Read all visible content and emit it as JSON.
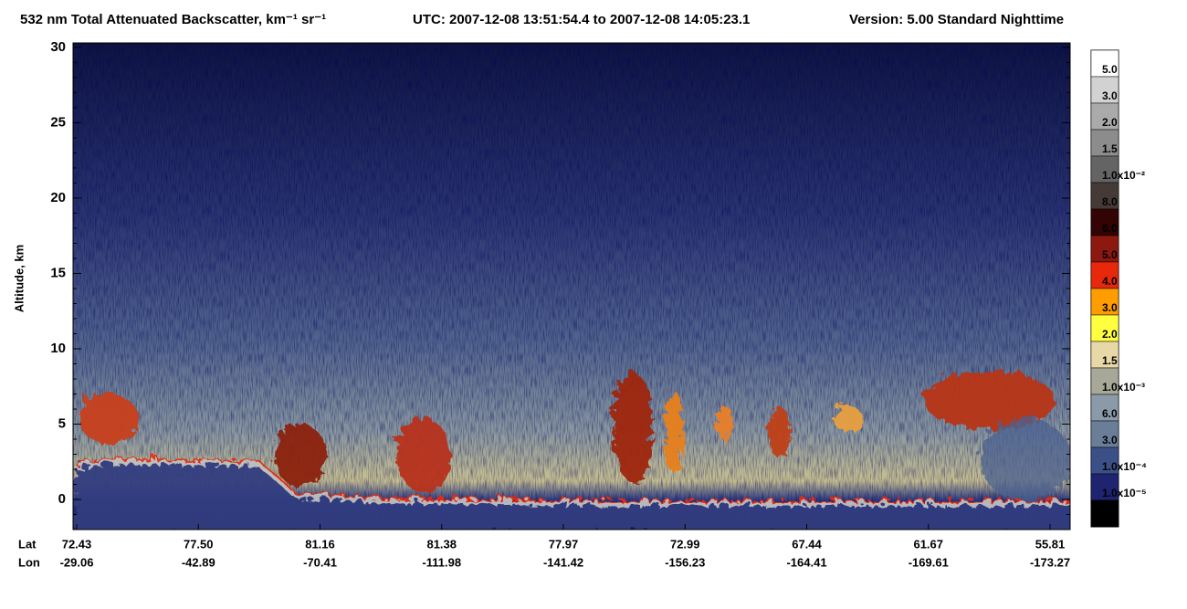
{
  "chart_data": {
    "type": "heatmap",
    "title": "532 nm Total Attenuated Backscatter, km⁻¹ sr⁻¹",
    "subtitle": "UTC:  2007-12-08 13:51:54.4  to  2007-12-08 14:05:23.1",
    "version": "Version: 5.00  Standard  Nighttime",
    "y_label": "Altitude, km",
    "ylim": [
      -2,
      30.3
    ],
    "yticks": [
      0,
      5,
      10,
      15,
      20,
      25,
      30
    ],
    "x_row_labels": [
      "Lat",
      "Lon"
    ],
    "lat": [
      "72.43",
      "77.50",
      "81.16",
      "81.38",
      "77.97",
      "72.99",
      "67.44",
      "61.67",
      "55.81"
    ],
    "lon": [
      "-29.06",
      "-42.89",
      "-70.41",
      "-111.98",
      "-141.42",
      "-156.23",
      "-164.41",
      "-169.61",
      "-173.27"
    ],
    "colorbar_labels": [
      "5.0",
      "3.0",
      "2.0",
      "1.5",
      "1.0x10⁻²",
      "8.0",
      "6.0",
      "5.0",
      "4.0",
      "3.0",
      "2.0",
      "1.5",
      "1.0x10⁻³",
      "6.0",
      "3.0",
      "1.0x10⁻⁴",
      "1.0x10⁻⁵"
    ],
    "colorbar_colors": [
      "#ffffff",
      "#d2d2d2",
      "#aaaaaa",
      "#8c8c8c",
      "#646464",
      "#463a36",
      "#320404",
      "#8c1810",
      "#e8280c",
      "#ff9c00",
      "#ffff40",
      "#e8d8a8",
      "#a8a898",
      "#8a9aa8",
      "#6a7e98",
      "#3c5088",
      "#1e2470",
      "#000000"
    ]
  }
}
